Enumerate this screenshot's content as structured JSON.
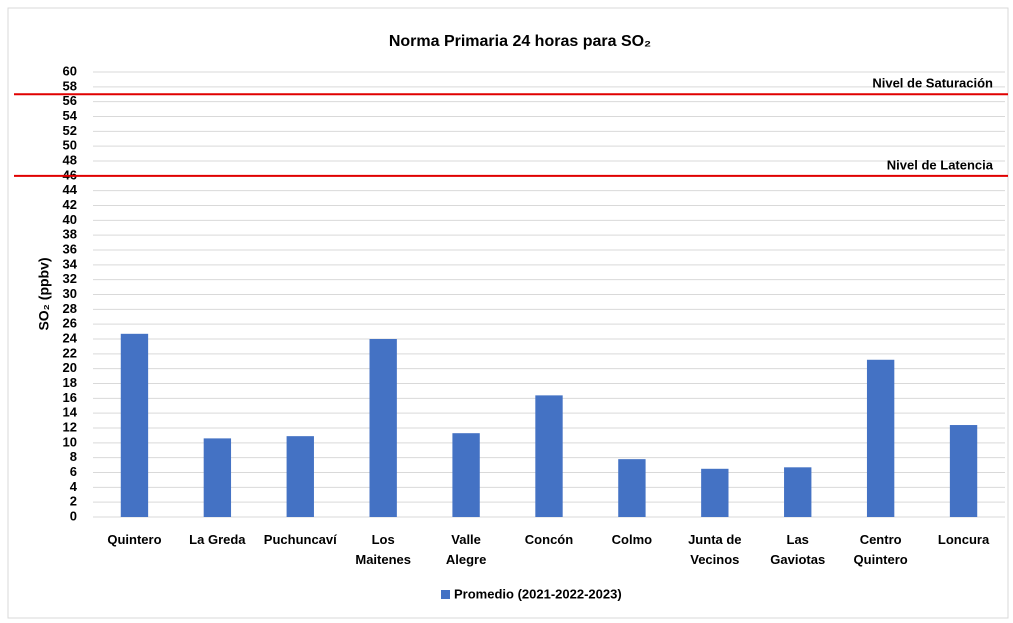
{
  "chart_data": {
    "type": "bar",
    "title": "Norma Primaria 24 horas para SO₂",
    "y_label": "SO₂ (ppbv)",
    "categories": [
      "Quintero",
      "La Greda",
      "Puchuncaví",
      "Los\nMaitenes",
      "Valle\nAlegre",
      "Concón",
      "Colmo",
      "Junta de\nVecinos",
      "Las\nGaviotas",
      "Centro\nQuintero",
      "Loncura"
    ],
    "series": [
      {
        "name": "Promedio (2021-2022-2023)",
        "color": "#4472c4",
        "values": [
          24.7,
          10.6,
          10.9,
          24.0,
          11.3,
          16.4,
          7.8,
          6.5,
          6.7,
          21.2,
          12.4
        ]
      }
    ],
    "ylim": [
      0,
      60
    ],
    "yticks": [
      0,
      2,
      4,
      6,
      8,
      10,
      12,
      14,
      16,
      18,
      20,
      22,
      24,
      26,
      28,
      30,
      32,
      34,
      36,
      38,
      40,
      42,
      44,
      46,
      48,
      50,
      52,
      54,
      56,
      58,
      60
    ],
    "grid": true,
    "legend": "bottom",
    "reference_lines": [
      {
        "label": "Nivel de Saturación",
        "value": 57,
        "color": "#e00000"
      },
      {
        "label": "Nivel de Latencia",
        "value": 46,
        "color": "#e00000"
      }
    ]
  }
}
